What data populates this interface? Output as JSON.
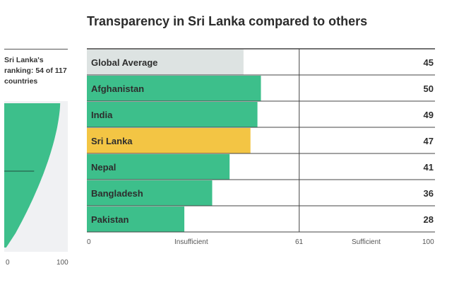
{
  "title": "Transparency in Sri Lanka compared to others",
  "ranking_label": "Sri Lanka's ranking: 54 of 117 countries",
  "distribution_axis": {
    "min_label": "0",
    "max_label": "100"
  },
  "main_axis": {
    "min_label": "0",
    "threshold_label": "61",
    "max_label": "100",
    "insufficient_label": "Insufficient",
    "sufficient_label": "Sufficient"
  },
  "colors": {
    "green": "#3dbf8b",
    "highlight": "#f3c544",
    "average": "#dde3e2",
    "panel": "#f0f1f3"
  },
  "chart_data": [
    {
      "type": "bar",
      "orientation": "horizontal",
      "title": "Transparency in Sri Lanka compared to others",
      "categories": [
        "Global Average",
        "Afghanistan",
        "India",
        "Sri Lanka",
        "Nepal",
        "Bangladesh",
        "Pakistan"
      ],
      "values": [
        45,
        50,
        49,
        47,
        41,
        36,
        28
      ],
      "xlim": [
        0,
        100
      ],
      "threshold": 61,
      "xticks": [
        "0",
        "61",
        "100"
      ],
      "region_labels": [
        "Insufficient",
        "Sufficient"
      ],
      "highlight": "Sri Lanka"
    },
    {
      "type": "area",
      "title": "Sri Lanka's ranking: 54 of 117 countries",
      "description_values": "sorted country scores (117 countries)",
      "xlim": [
        0,
        100
      ],
      "marker_value": 47,
      "xticks": [
        "0",
        "100"
      ]
    }
  ]
}
